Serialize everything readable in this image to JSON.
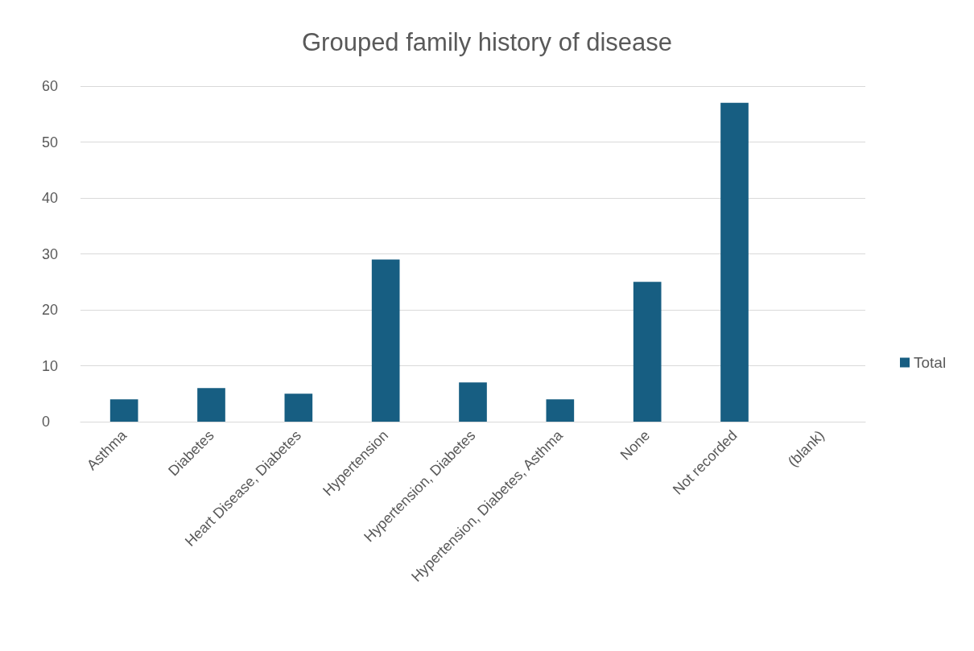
{
  "chart_data": {
    "type": "bar",
    "title": "Grouped family history of disease",
    "categories": [
      "Asthma",
      "Diabetes",
      "Heart Disease, Diabetes",
      "Hypertension",
      "Hypertension, Diabetes",
      "Hypertension, Diabetes, Asthma",
      "None",
      "Not recorded",
      "(blank)"
    ],
    "series": [
      {
        "name": "Total",
        "color": "#175e82",
        "values": [
          4,
          6,
          5,
          29,
          7,
          4,
          25,
          57,
          null
        ]
      }
    ],
    "ylim": [
      0,
      60
    ],
    "yticks": [
      0,
      10,
      20,
      30,
      40,
      50,
      60
    ],
    "grid": "y",
    "legend": "right"
  }
}
